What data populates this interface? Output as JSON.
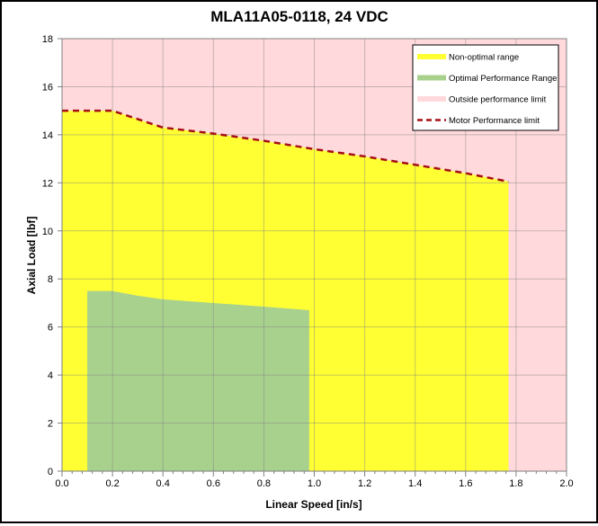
{
  "chart_data": {
    "type": "area",
    "title": "MLA11A05-0118, 24 VDC",
    "xlabel": "Linear Speed [in/s]",
    "ylabel": "Axial Load [lbf]",
    "xlim": [
      0,
      2.0
    ],
    "ylim": [
      0,
      18
    ],
    "xticks": [
      "0.0",
      "0.2",
      "0.4",
      "0.6",
      "0.8",
      "1.0",
      "1.2",
      "1.4",
      "1.6",
      "1.8",
      "2.0"
    ],
    "yticks": [
      "0",
      "2",
      "4",
      "6",
      "8",
      "10",
      "12",
      "14",
      "16",
      "18"
    ],
    "grid": true,
    "legend_position": "top-right",
    "series": [
      {
        "name": "Non-optimal range",
        "kind": "area",
        "color": "#ffff33",
        "x": [
          0,
          0.2,
          0.4,
          0.6,
          0.8,
          1.0,
          1.2,
          1.4,
          1.6,
          1.77
        ],
        "y": [
          15,
          15,
          14.3,
          14.05,
          13.75,
          13.4,
          13.1,
          12.75,
          12.4,
          12.05
        ]
      },
      {
        "name": "Optimal Performance Range",
        "kind": "area",
        "color": "#a9d18e",
        "x": [
          0.1,
          0.2,
          0.3,
          0.4,
          0.6,
          0.8,
          0.98
        ],
        "y": [
          7.5,
          7.5,
          7.3,
          7.15,
          7.0,
          6.85,
          6.7
        ]
      },
      {
        "name": "Outside performance limit",
        "kind": "background",
        "color": "#ffd9dc"
      },
      {
        "name": "Motor Performance limit",
        "kind": "dashed-line",
        "color": "#a50f15",
        "x": [
          0,
          0.2,
          0.4,
          0.6,
          0.8,
          1.0,
          1.2,
          1.4,
          1.6,
          1.77
        ],
        "y": [
          15,
          15,
          14.3,
          14.05,
          13.75,
          13.4,
          13.1,
          12.75,
          12.4,
          12.05
        ]
      }
    ]
  }
}
